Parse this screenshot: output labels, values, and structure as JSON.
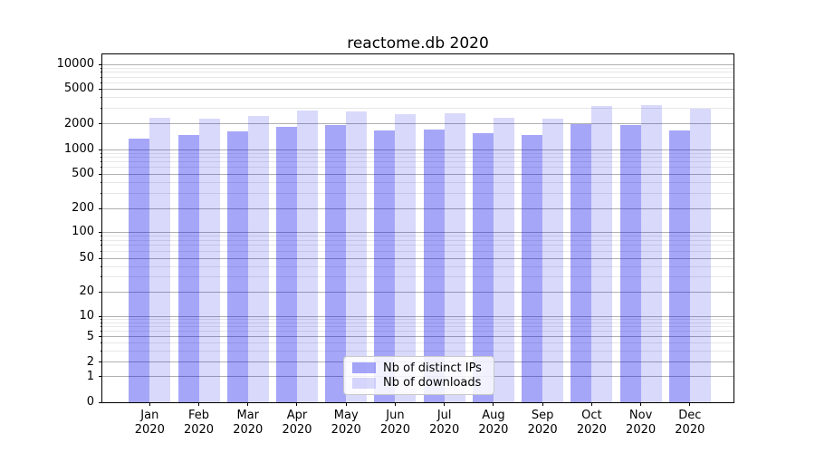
{
  "chart_data": {
    "type": "bar",
    "title": "reactome.db 2020",
    "categories": [
      "Jan",
      "Feb",
      "Mar",
      "Apr",
      "May",
      "Jun",
      "Jul",
      "Aug",
      "Sep",
      "Oct",
      "Nov",
      "Dec"
    ],
    "x_tick_year": "2020",
    "series": [
      {
        "name": "Nb of distinct IPs",
        "color": "rgba(0,0,235,0.35)",
        "values": [
          1350,
          1460,
          1620,
          1820,
          1920,
          1680,
          1700,
          1560,
          1480,
          1980,
          1950,
          1670
        ]
      },
      {
        "name": "Nb of downloads",
        "color": "rgba(0,0,235,0.15)",
        "values": [
          2320,
          2280,
          2430,
          2800,
          2760,
          2600,
          2620,
          2320,
          2260,
          3200,
          3300,
          3000
        ]
      }
    ],
    "yscale": "symlog",
    "yticks": [
      0,
      1,
      2,
      5,
      10,
      20,
      50,
      100,
      200,
      500,
      1000,
      2000,
      5000,
      10000
    ],
    "ylim": [
      0,
      13000
    ],
    "xlabel": "",
    "ylabel": "",
    "grid": "major+minor",
    "legend_position": "lower center",
    "colors": {
      "major_grid": "#b0b0b0",
      "minor_grid": "#e7e7e7",
      "axis": "#000000",
      "background": "#ffffff"
    }
  }
}
